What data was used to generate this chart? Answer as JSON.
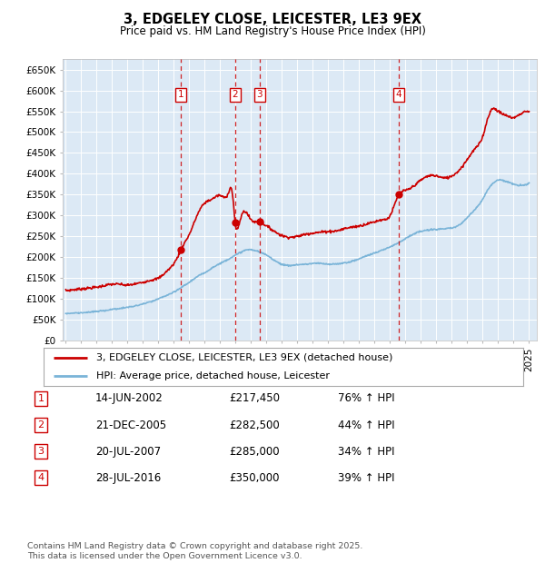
{
  "title": "3, EDGELEY CLOSE, LEICESTER, LE3 9EX",
  "subtitle": "Price paid vs. HM Land Registry's House Price Index (HPI)",
  "bg_color": "#dce9f5",
  "plot_bg_color": "#dce9f5",
  "fig_bg_color": "#ffffff",
  "red_line_color": "#cc0000",
  "blue_line_color": "#7ab4d8",
  "grid_color": "#ffffff",
  "ylim": [
    0,
    675000
  ],
  "xlim": [
    1994.8,
    2025.5
  ],
  "yticks": [
    0,
    50000,
    100000,
    150000,
    200000,
    250000,
    300000,
    350000,
    400000,
    450000,
    500000,
    550000,
    600000,
    650000
  ],
  "ytick_labels": [
    "£0",
    "£50K",
    "£100K",
    "£150K",
    "£200K",
    "£250K",
    "£300K",
    "£350K",
    "£400K",
    "£450K",
    "£500K",
    "£550K",
    "£600K",
    "£650K"
  ],
  "transactions": [
    {
      "num": 1,
      "date_num": 2002.45,
      "price": 217450
    },
    {
      "num": 2,
      "date_num": 2005.97,
      "price": 282500
    },
    {
      "num": 3,
      "date_num": 2007.55,
      "price": 285000
    },
    {
      "num": 4,
      "date_num": 2016.57,
      "price": 350000
    }
  ],
  "legend_line1": "3, EDGELEY CLOSE, LEICESTER, LE3 9EX (detached house)",
  "legend_line2": "HPI: Average price, detached house, Leicester",
  "table_rows": [
    [
      "1",
      "14-JUN-2002",
      "£217,450",
      "76% ↑ HPI"
    ],
    [
      "2",
      "21-DEC-2005",
      "£282,500",
      "44% ↑ HPI"
    ],
    [
      "3",
      "20-JUL-2007",
      "£285,000",
      "34% ↑ HPI"
    ],
    [
      "4",
      "28-JUL-2016",
      "£350,000",
      "39% ↑ HPI"
    ]
  ],
  "footer": "Contains HM Land Registry data © Crown copyright and database right 2025.\nThis data is licensed under the Open Government Licence v3.0.",
  "red_data": {
    "years": [
      1995.0,
      1995.5,
      1996.0,
      1996.5,
      1997.0,
      1997.5,
      1998.0,
      1998.5,
      1999.0,
      1999.5,
      2000.0,
      2000.5,
      2001.0,
      2001.5,
      2002.0,
      2002.3,
      2002.45,
      2002.7,
      2003.0,
      2003.5,
      2004.0,
      2004.5,
      2005.0,
      2005.5,
      2005.8,
      2005.97,
      2006.3,
      2006.6,
      2006.9,
      2007.2,
      2007.55,
      2007.8,
      2008.2,
      2008.6,
      2009.0,
      2009.5,
      2010.0,
      2010.5,
      2011.0,
      2011.5,
      2012.0,
      2012.5,
      2013.0,
      2013.5,
      2014.0,
      2014.5,
      2015.0,
      2015.5,
      2016.0,
      2016.57,
      2017.0,
      2017.5,
      2018.0,
      2018.5,
      2019.0,
      2019.5,
      2020.0,
      2020.5,
      2021.0,
      2021.5,
      2022.0,
      2022.3,
      2022.6,
      2023.0,
      2023.5,
      2024.0,
      2024.5,
      2025.0
    ],
    "values": [
      120000,
      122000,
      124000,
      126000,
      128000,
      132000,
      135000,
      135000,
      133000,
      136000,
      140000,
      145000,
      150000,
      165000,
      185000,
      205000,
      217450,
      235000,
      255000,
      300000,
      330000,
      340000,
      348000,
      352000,
      350000,
      282500,
      290000,
      310000,
      295000,
      285000,
      285000,
      280000,
      270000,
      260000,
      252000,
      248000,
      250000,
      255000,
      258000,
      260000,
      262000,
      263000,
      268000,
      272000,
      275000,
      280000,
      285000,
      290000,
      300000,
      350000,
      360000,
      370000,
      385000,
      395000,
      395000,
      390000,
      395000,
      410000,
      435000,
      460000,
      490000,
      530000,
      555000,
      550000,
      540000,
      535000,
      545000,
      548000
    ]
  },
  "blue_data": {
    "years": [
      1995.0,
      1995.5,
      1996.0,
      1996.5,
      1997.0,
      1997.5,
      1998.0,
      1998.5,
      1999.0,
      1999.5,
      2000.0,
      2000.5,
      2001.0,
      2001.5,
      2002.0,
      2002.5,
      2003.0,
      2003.5,
      2004.0,
      2004.5,
      2005.0,
      2005.5,
      2006.0,
      2006.5,
      2007.0,
      2007.5,
      2008.0,
      2008.5,
      2009.0,
      2009.5,
      2010.0,
      2010.5,
      2011.0,
      2011.5,
      2012.0,
      2012.5,
      2013.0,
      2013.5,
      2014.0,
      2014.5,
      2015.0,
      2015.5,
      2016.0,
      2016.5,
      2017.0,
      2017.5,
      2018.0,
      2018.5,
      2019.0,
      2019.5,
      2020.0,
      2020.5,
      2021.0,
      2021.5,
      2022.0,
      2022.3,
      2022.6,
      2023.0,
      2023.5,
      2024.0,
      2024.5,
      2025.0
    ],
    "values": [
      65000,
      66000,
      67000,
      68000,
      70000,
      72000,
      75000,
      77000,
      80000,
      83000,
      88000,
      93000,
      100000,
      108000,
      116000,
      128000,
      140000,
      153000,
      163000,
      175000,
      185000,
      195000,
      205000,
      215000,
      218000,
      213000,
      205000,
      193000,
      183000,
      180000,
      182000,
      183000,
      185000,
      185000,
      183000,
      184000,
      186000,
      190000,
      196000,
      204000,
      210000,
      217000,
      225000,
      234000,
      245000,
      255000,
      262000,
      265000,
      267000,
      268000,
      270000,
      278000,
      295000,
      315000,
      340000,
      360000,
      375000,
      385000,
      382000,
      375000,
      372000,
      378000
    ]
  }
}
